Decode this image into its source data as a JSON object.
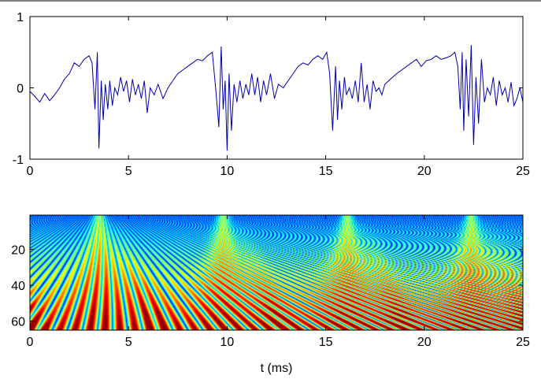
{
  "chart_data": [
    {
      "type": "line",
      "xlabel": "",
      "ylabel": "",
      "xlim": [
        0,
        25
      ],
      "ylim": [
        -1,
        1
      ],
      "xticks": [
        "0",
        "5",
        "10",
        "15",
        "20",
        "25"
      ],
      "yticks": [
        "-1",
        "0",
        "1"
      ],
      "grid": false,
      "line_color": "#0000aa",
      "series": [
        {
          "x": [
            0,
            0.25,
            0.5,
            0.75,
            1.0,
            1.25,
            1.5,
            1.75,
            2.0,
            2.25,
            2.5,
            2.75,
            3.0,
            3.15,
            3.3,
            3.42,
            3.5,
            3.62,
            3.72,
            3.82,
            3.95,
            4.05,
            4.18,
            4.3,
            4.45,
            4.6,
            4.75,
            4.9,
            5.05,
            5.2,
            5.35,
            5.5,
            5.65,
            5.8,
            5.95,
            6.1,
            6.3,
            6.5,
            6.75,
            7.0,
            7.25,
            7.5,
            7.75,
            8.0,
            8.25,
            8.5,
            8.75,
            9.0,
            9.25,
            9.45,
            9.58,
            9.7,
            9.8,
            9.9,
            10.0,
            10.1,
            10.22,
            10.35,
            10.5,
            10.65,
            10.8,
            10.95,
            11.1,
            11.25,
            11.4,
            11.55,
            11.7,
            11.85,
            12.0,
            12.2,
            12.4,
            12.6,
            12.85,
            13.1,
            13.35,
            13.6,
            13.85,
            14.1,
            14.35,
            14.6,
            14.85,
            15.05,
            15.2,
            15.35,
            15.5,
            15.6,
            15.7,
            15.82,
            15.95,
            16.05,
            16.2,
            16.35,
            16.5,
            16.65,
            16.8,
            16.95,
            17.1,
            17.25,
            17.4,
            17.55,
            17.7,
            17.85,
            18.0,
            18.2,
            18.4,
            18.6,
            18.85,
            19.1,
            19.35,
            19.6,
            19.85,
            20.1,
            20.35,
            20.6,
            20.85,
            21.1,
            21.35,
            21.55,
            21.7,
            21.82,
            21.92,
            22.0,
            22.12,
            22.25,
            22.38,
            22.5,
            22.62,
            22.75,
            22.9,
            23.05,
            23.2,
            23.35,
            23.5,
            23.65,
            23.8,
            23.95,
            24.1,
            24.25,
            24.4,
            24.55,
            24.7,
            24.85,
            25.0
          ],
          "y": [
            -0.05,
            -0.12,
            -0.2,
            -0.08,
            -0.18,
            -0.1,
            0.0,
            0.12,
            0.2,
            0.35,
            0.3,
            0.4,
            0.45,
            0.35,
            -0.3,
            0.5,
            -0.85,
            0.1,
            -0.45,
            0.05,
            -0.3,
            0.1,
            -0.25,
            0.0,
            -0.1,
            0.15,
            -0.05,
            0.1,
            -0.2,
            0.12,
            -0.1,
            0.05,
            -0.15,
            0.1,
            -0.35,
            0.0,
            -0.1,
            0.05,
            -0.15,
            0.0,
            0.1,
            0.2,
            0.25,
            0.3,
            0.35,
            0.4,
            0.38,
            0.45,
            0.5,
            -0.1,
            -0.55,
            0.58,
            -0.3,
            0.1,
            -0.88,
            0.2,
            -0.6,
            0.05,
            -0.2,
            0.1,
            -0.15,
            0.05,
            -0.1,
            0.2,
            -0.1,
            0.15,
            -0.2,
            0.1,
            -0.1,
            0.2,
            -0.15,
            0.05,
            0.0,
            0.1,
            0.2,
            0.3,
            0.35,
            0.32,
            0.4,
            0.45,
            0.4,
            0.5,
            0.2,
            -0.6,
            0.3,
            -0.45,
            0.1,
            -0.3,
            0.15,
            -0.1,
            0.0,
            -0.15,
            0.1,
            -0.2,
            0.35,
            -0.2,
            0.05,
            -0.3,
            0.1,
            -0.05,
            0.0,
            -0.1,
            0.05,
            0.1,
            0.15,
            0.2,
            0.25,
            0.3,
            0.35,
            0.4,
            0.3,
            0.38,
            0.4,
            0.45,
            0.4,
            0.42,
            0.45,
            0.5,
            0.3,
            -0.3,
            0.5,
            -0.6,
            0.4,
            -0.4,
            0.6,
            -0.8,
            0.15,
            -0.5,
            0.4,
            -0.2,
            0.0,
            -0.1,
            0.15,
            -0.25,
            0.1,
            -0.1,
            0.0,
            -0.2,
            0.08,
            -0.25,
            -0.15,
            0.0,
            -0.2
          ]
        }
      ]
    },
    {
      "type": "heatmap",
      "xlabel": "t (ms)",
      "ylabel": "",
      "xlim": [
        0,
        25
      ],
      "ylim": [
        65,
        1
      ],
      "xticks": [
        "0",
        "5",
        "10",
        "15",
        "20",
        "25"
      ],
      "yticks": [
        "20",
        "40",
        "60"
      ],
      "colormap": "jet",
      "colormap_stops": [
        "#00008f",
        "#0000ff",
        "#00ffff",
        "#ffff00",
        "#ff0000",
        "#800000"
      ],
      "cycle_starts": [
        0,
        6.3,
        12.6,
        18.9
      ],
      "cycle_period": 6.3
    }
  ]
}
